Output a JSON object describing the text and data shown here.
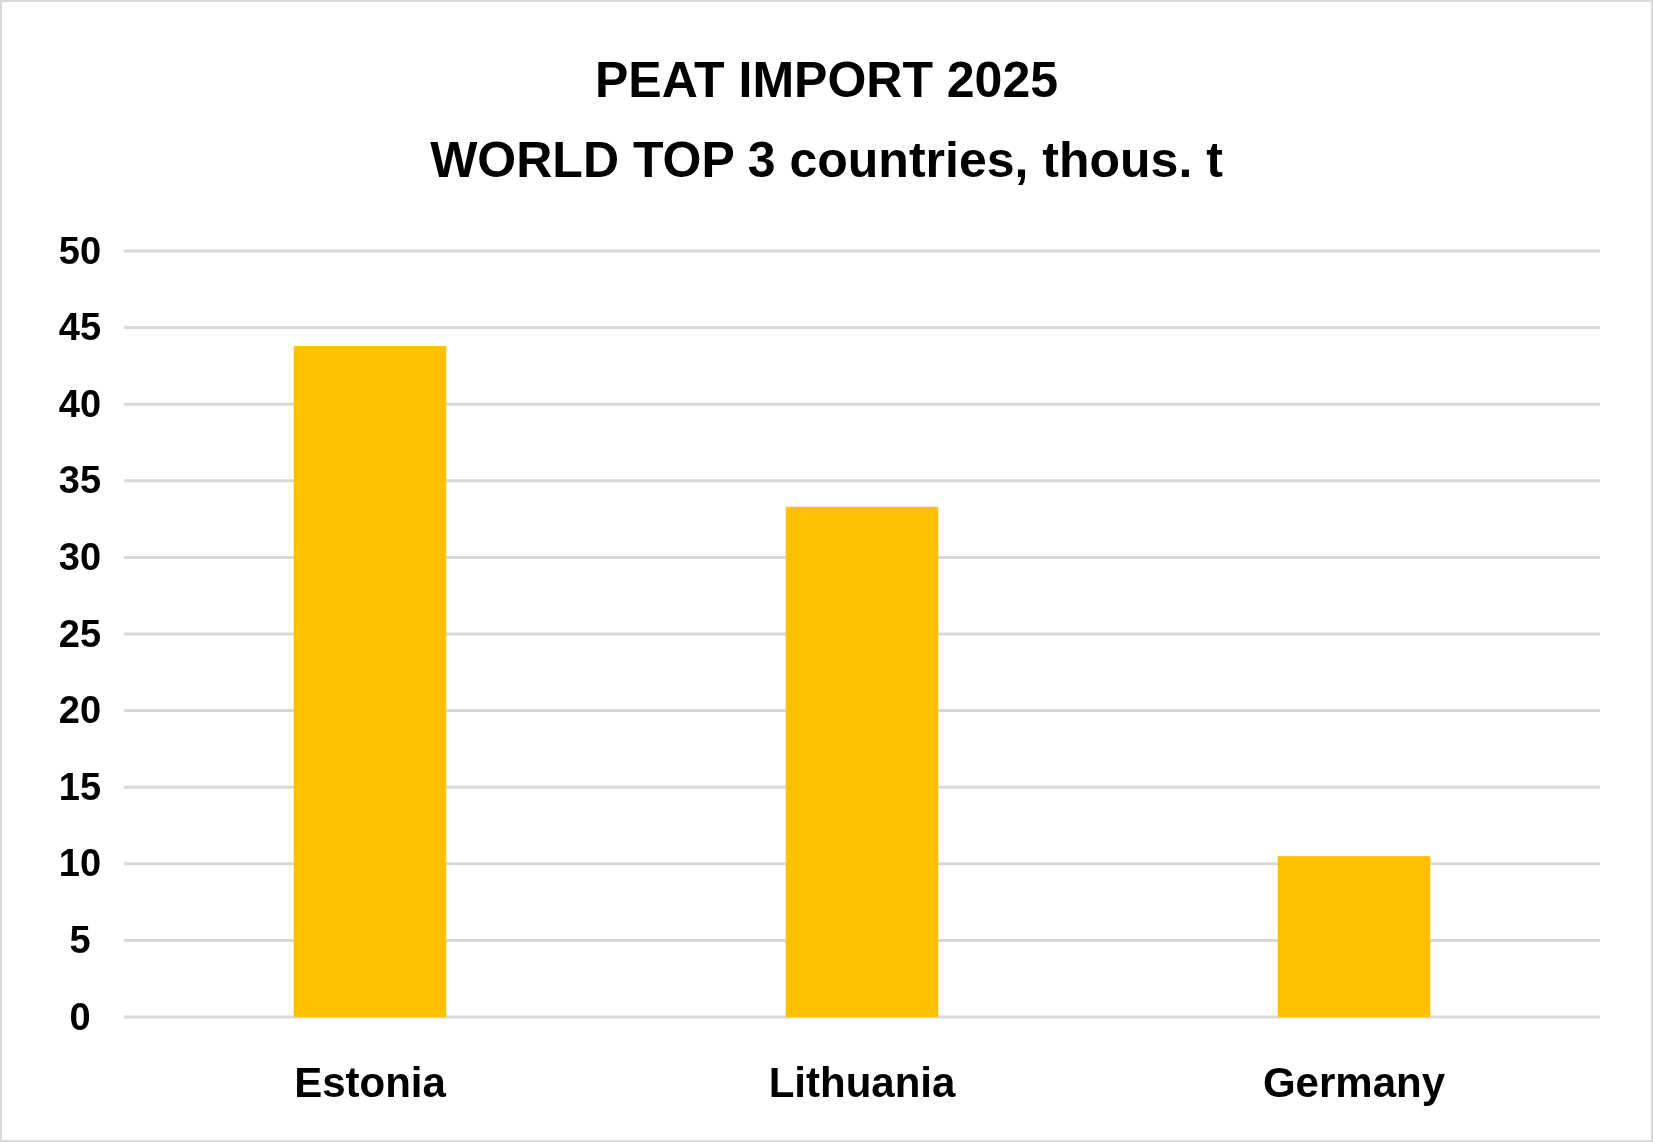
{
  "chart_data": {
    "type": "bar",
    "title": "PEAT IMPORT 2025\nWORLD TOP 3 countries, thous. t",
    "categories": [
      "Estonia",
      "Lithuania",
      "Germany"
    ],
    "values": [
      43.8,
      33.3,
      10.5
    ],
    "color": "#ffc000",
    "ylim": [
      0,
      50
    ],
    "yticks": [
      0,
      5,
      10,
      15,
      20,
      25,
      30,
      35,
      40,
      45,
      50
    ],
    "grid": "y"
  }
}
